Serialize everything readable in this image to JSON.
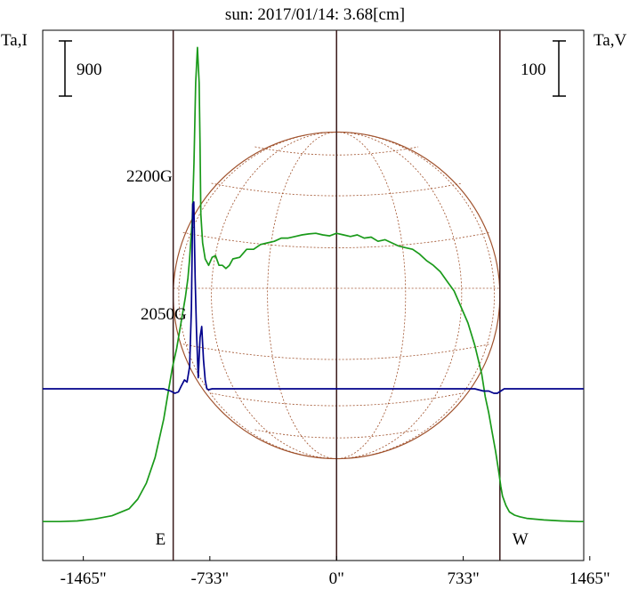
{
  "chart_data": {
    "type": "line",
    "title": "sun: 2017/01/14: 3.68[cm]",
    "left_axis_label": "Ta,I",
    "right_axis_label": "Ta,V",
    "left_scale_label": "900",
    "right_scale_label": "100",
    "xlim": [
      -1700,
      1430
    ],
    "xticks": [
      {
        "value": -1465,
        "label": "-1465\""
      },
      {
        "value": -733,
        "label": "-733\""
      },
      {
        "value": 0,
        "label": "0\""
      },
      {
        "value": 733,
        "label": "733\""
      },
      {
        "value": 1465,
        "label": "1465\""
      }
    ],
    "limbs": [
      {
        "value": -945,
        "label": "E"
      },
      {
        "value": 945,
        "label": "W"
      }
    ],
    "annotations": [
      "2200G",
      "2050G"
    ],
    "grid": false,
    "colors": {
      "intensity": "#1a9a1a",
      "polarization": "#00008b",
      "disk": "#a0522d",
      "limb_lines": "#3a1a1a",
      "title": "#1a1a6e"
    },
    "series": [
      {
        "key": "intensity",
        "x": [
          -1700,
          -1600,
          -1500,
          -1400,
          -1300,
          -1200,
          -1150,
          -1100,
          -1050,
          -1000,
          -975,
          -950,
          -925,
          -900,
          -875,
          -860,
          -850,
          -835,
          -825,
          -815,
          -805,
          -795,
          -790,
          -785,
          -775,
          -760,
          -740,
          -720,
          -700,
          -680,
          -660,
          -640,
          -620,
          -600,
          -560,
          -520,
          -480,
          -440,
          -400,
          -360,
          -320,
          -280,
          -240,
          -200,
          -160,
          -120,
          -80,
          -40,
          0,
          40,
          80,
          120,
          160,
          200,
          240,
          280,
          320,
          360,
          400,
          440,
          480,
          520,
          560,
          600,
          640,
          680,
          720,
          760,
          800,
          840,
          860,
          880,
          900,
          920,
          940,
          950,
          960,
          980,
          1000,
          1030,
          1060,
          1100,
          1200,
          1300,
          1400,
          1430
        ],
        "y": [
          80,
          80,
          82,
          88,
          98,
          120,
          150,
          200,
          280,
          400,
          480,
          560,
          620,
          700,
          780,
          840,
          900,
          1020,
          1200,
          1450,
          1560,
          1450,
          1260,
          1040,
          950,
          900,
          880,
          905,
          910,
          880,
          880,
          870,
          880,
          900,
          905,
          930,
          930,
          945,
          950,
          955,
          965,
          965,
          970,
          975,
          978,
          980,
          975,
          972,
          980,
          975,
          970,
          975,
          965,
          968,
          955,
          960,
          950,
          940,
          935,
          930,
          915,
          895,
          880,
          860,
          830,
          800,
          750,
          700,
          630,
          540,
          470,
          420,
          360,
          300,
          230,
          190,
          160,
          130,
          110,
          100,
          95,
          90,
          85,
          82,
          80,
          80
        ]
      },
      {
        "key": "polarization",
        "x": [
          -1700,
          -1650,
          -1600,
          -1550,
          -1500,
          -1450,
          -1400,
          -1350,
          -1300,
          -1250,
          -1200,
          -1150,
          -1100,
          -1050,
          -1000,
          -960,
          -935,
          -915,
          -900,
          -880,
          -865,
          -850,
          -840,
          -832,
          -826,
          -818,
          -810,
          -800,
          -790,
          -780,
          -770,
          -760,
          -750,
          -740,
          -730,
          -720,
          -700,
          -650,
          -600,
          -550,
          -500,
          -450,
          -400,
          -350,
          -300,
          -250,
          -200,
          -150,
          -100,
          -50,
          0,
          50,
          100,
          150,
          200,
          250,
          300,
          350,
          400,
          450,
          500,
          550,
          600,
          650,
          700,
          750,
          800,
          850,
          880,
          910,
          930,
          950,
          970,
          1000,
          1050,
          1100,
          1150,
          1200,
          1250,
          1300,
          1350,
          1400,
          1430
        ],
        "y": [
          0,
          0,
          0,
          0,
          0,
          0,
          0,
          0,
          0,
          0,
          0,
          0,
          0,
          0,
          0,
          -10,
          -20,
          -14,
          10,
          40,
          30,
          100,
          360,
          830,
          840,
          500,
          250,
          50,
          230,
          280,
          130,
          40,
          0,
          -4,
          -2,
          0,
          0,
          0,
          0,
          0,
          0,
          0,
          0,
          0,
          0,
          0,
          0,
          0,
          0,
          0,
          0,
          0,
          0,
          0,
          0,
          0,
          0,
          0,
          0,
          0,
          0,
          0,
          0,
          0,
          0,
          0,
          0,
          -10,
          -10,
          -20,
          -20,
          -10,
          0,
          0,
          0,
          0,
          0,
          0,
          0,
          0,
          0,
          0,
          0
        ]
      }
    ]
  }
}
